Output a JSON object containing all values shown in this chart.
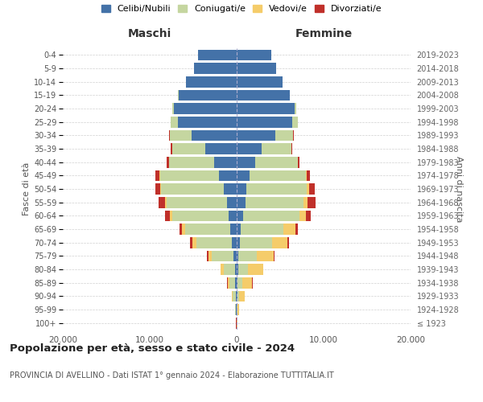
{
  "age_groups": [
    "100+",
    "95-99",
    "90-94",
    "85-89",
    "80-84",
    "75-79",
    "70-74",
    "65-69",
    "60-64",
    "55-59",
    "50-54",
    "45-49",
    "40-44",
    "35-39",
    "30-34",
    "25-29",
    "20-24",
    "15-19",
    "10-14",
    "5-9",
    "0-4"
  ],
  "birth_years": [
    "≤ 1923",
    "1924-1928",
    "1929-1933",
    "1934-1938",
    "1939-1943",
    "1944-1948",
    "1949-1953",
    "1954-1958",
    "1959-1963",
    "1964-1968",
    "1969-1973",
    "1974-1978",
    "1979-1983",
    "1984-1988",
    "1989-1993",
    "1994-1998",
    "1999-2003",
    "2004-2008",
    "2009-2013",
    "2014-2018",
    "2019-2023"
  ],
  "maschi": {
    "celibi": [
      20,
      60,
      100,
      150,
      200,
      350,
      600,
      700,
      900,
      1100,
      1500,
      2000,
      2600,
      3600,
      5200,
      6800,
      7200,
      6700,
      5800,
      4900,
      4400
    ],
    "coniugati": [
      20,
      120,
      320,
      700,
      1300,
      2500,
      4000,
      5200,
      6500,
      7000,
      7200,
      6800,
      5200,
      3800,
      2500,
      800,
      200,
      30,
      5,
      0,
      0
    ],
    "vedovi": [
      5,
      25,
      90,
      190,
      320,
      420,
      480,
      430,
      320,
      180,
      90,
      45,
      18,
      8,
      4,
      0,
      0,
      0,
      0,
      0,
      0
    ],
    "divorziati": [
      2,
      5,
      12,
      25,
      55,
      180,
      280,
      280,
      480,
      680,
      580,
      480,
      280,
      180,
      80,
      15,
      4,
      0,
      0,
      0,
      0
    ]
  },
  "femmine": {
    "nubili": [
      10,
      35,
      70,
      90,
      140,
      180,
      380,
      480,
      780,
      980,
      1150,
      1450,
      2100,
      2900,
      4400,
      6400,
      6700,
      6100,
      5300,
      4500,
      4000
    ],
    "coniugate": [
      20,
      90,
      230,
      560,
      1150,
      2100,
      3700,
      4900,
      6400,
      6700,
      6900,
      6500,
      4900,
      3400,
      2100,
      650,
      130,
      15,
      4,
      0,
      0
    ],
    "vedove": [
      25,
      180,
      580,
      1150,
      1750,
      1950,
      1750,
      1350,
      780,
      480,
      280,
      130,
      55,
      25,
      12,
      4,
      0,
      0,
      0,
      0,
      0
    ],
    "divorziate": [
      2,
      4,
      8,
      18,
      35,
      90,
      180,
      280,
      580,
      880,
      680,
      380,
      130,
      90,
      45,
      8,
      4,
      0,
      0,
      0,
      0
    ]
  },
  "colors": {
    "celibi": "#4472a8",
    "coniugati": "#c5d6a0",
    "vedovi": "#f5cc6a",
    "divorziati": "#c0302a"
  },
  "xlim": 20000,
  "title": "Popolazione per età, sesso e stato civile - 2024",
  "subtitle": "PROVINCIA DI AVELLINO - Dati ISTAT 1° gennaio 2024 - Elaborazione TUTTITALIA.IT",
  "ylabel_left": "Fasce di età",
  "ylabel_right": "Anni di nascita",
  "xlabel_left": "Maschi",
  "xlabel_right": "Femmine",
  "background_color": "#ffffff",
  "legend_labels": [
    "Celibi/Nubili",
    "Coniugati/e",
    "Vedovi/e",
    "Divorziati/e"
  ]
}
